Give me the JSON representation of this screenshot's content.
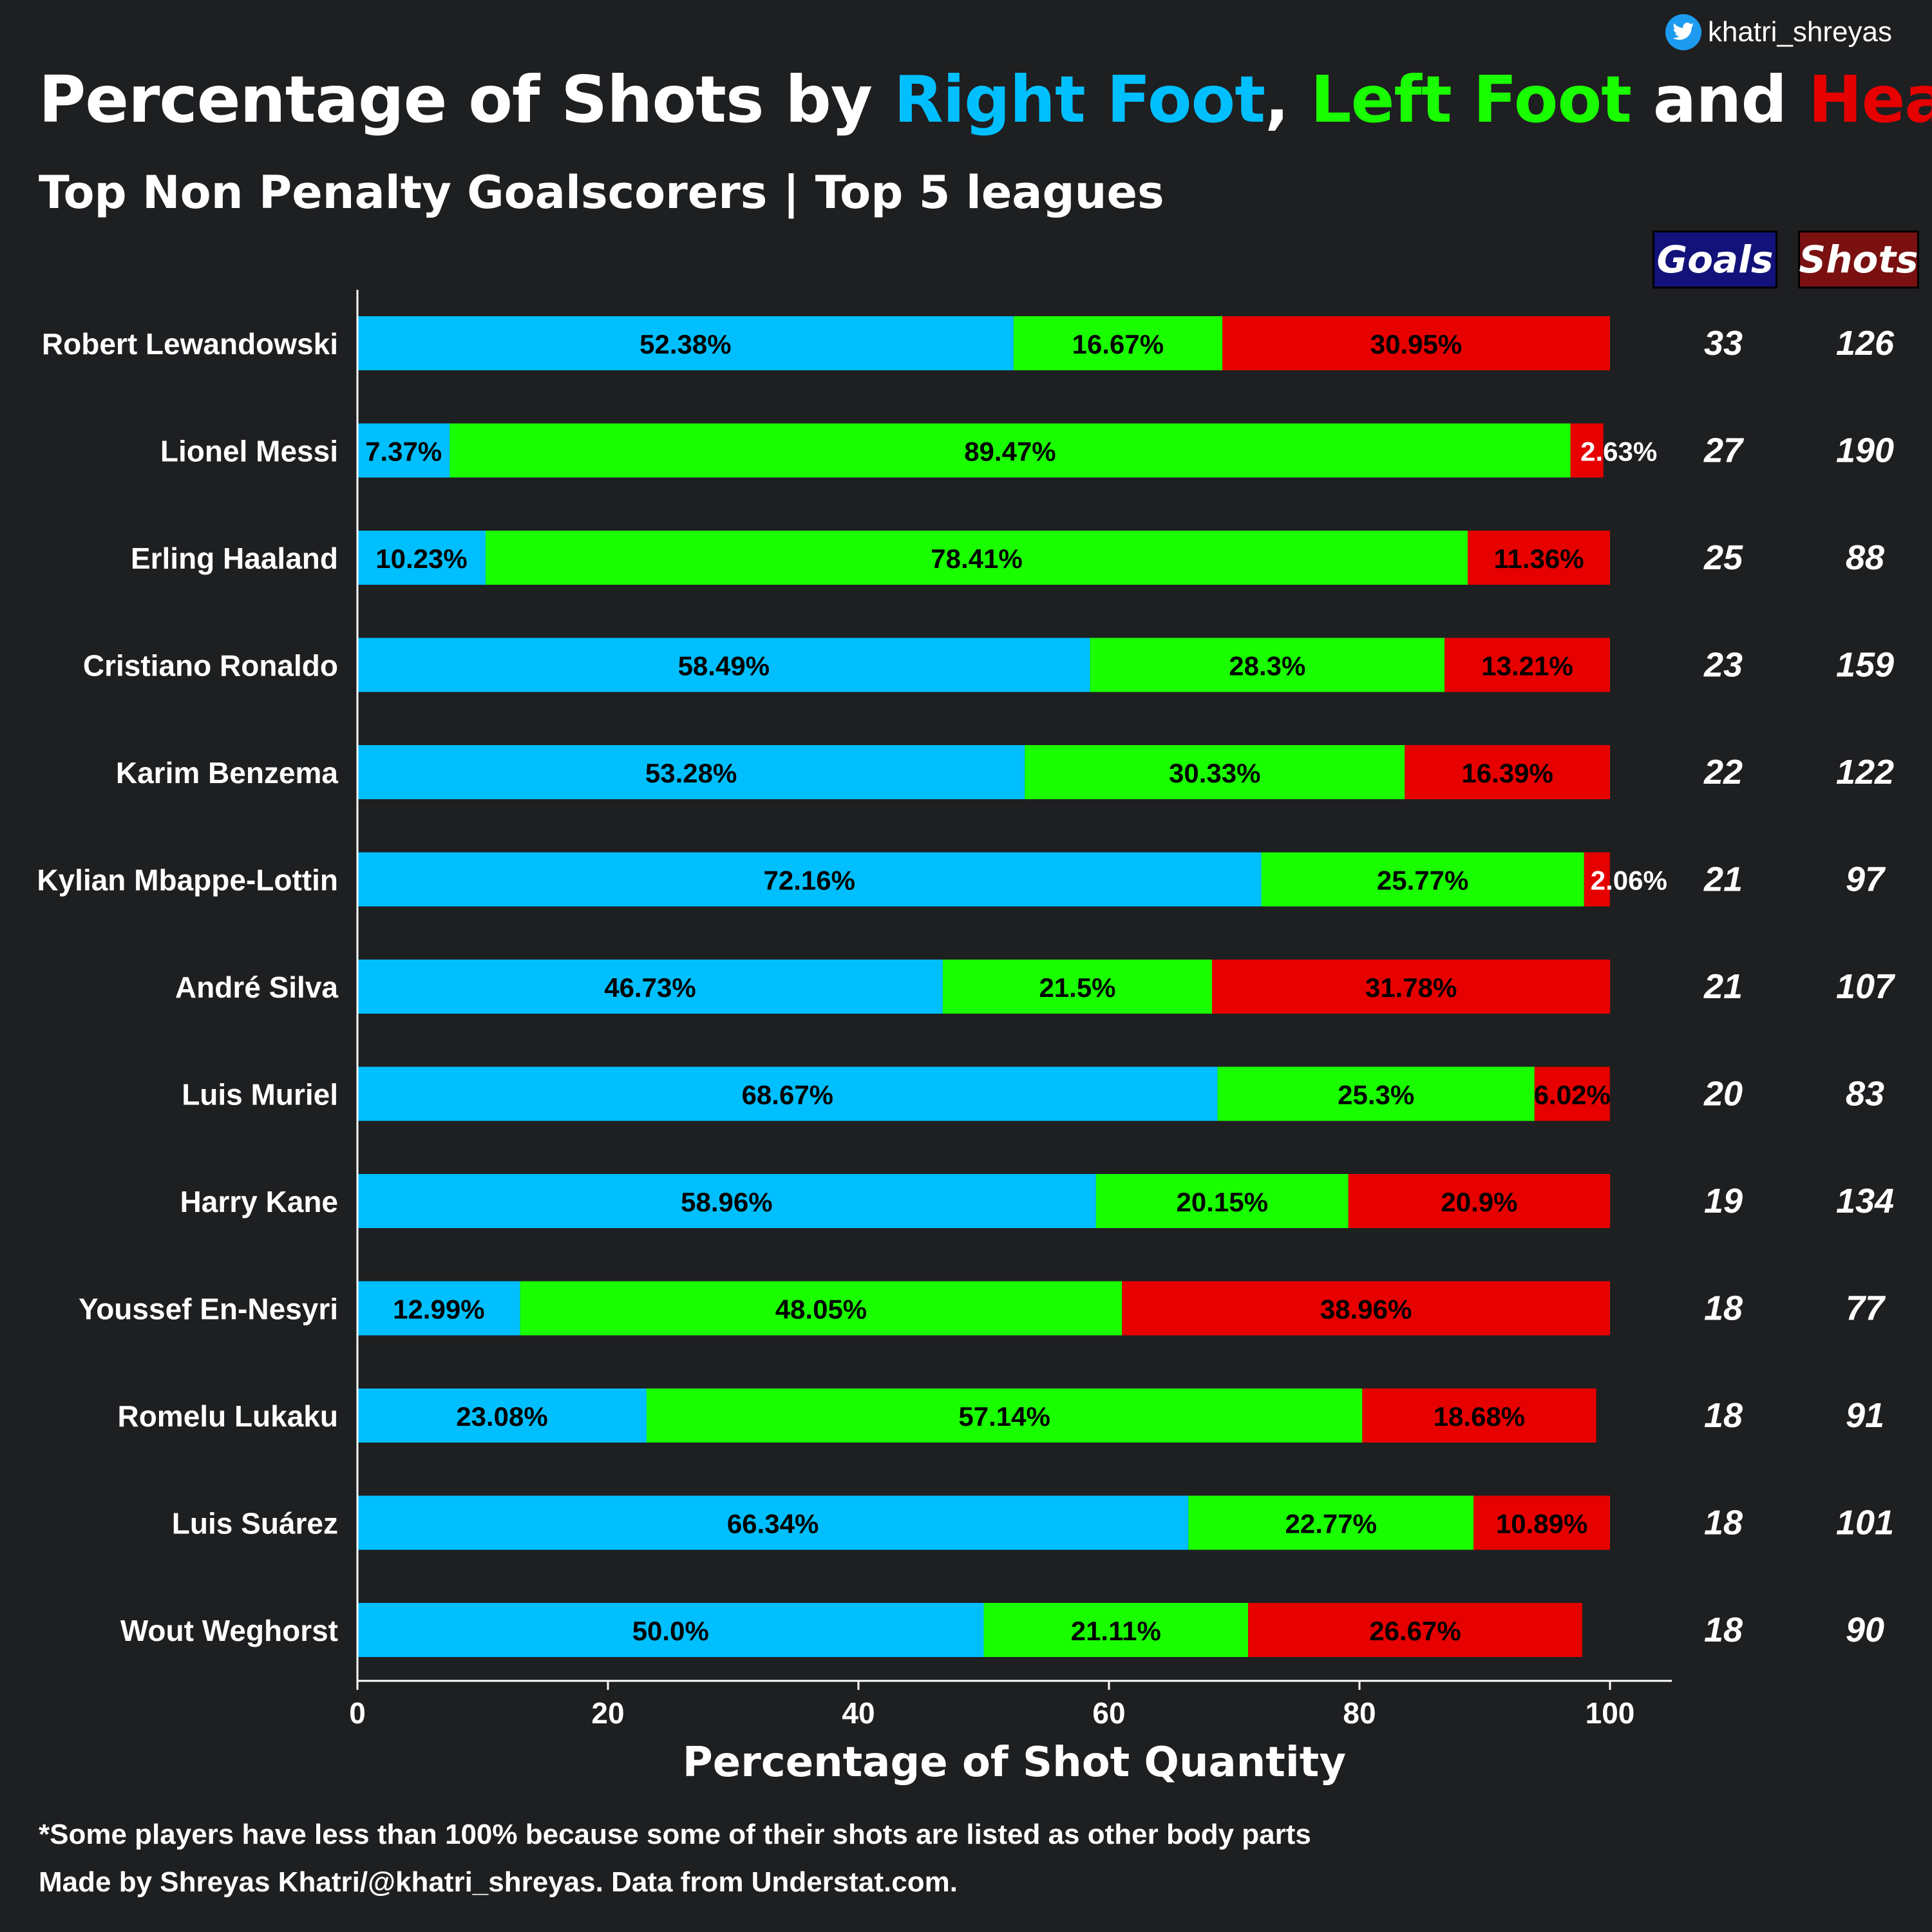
{
  "header": {
    "handle": "khatri_shreyas",
    "title_parts": [
      {
        "text": "Percentage of Shots by ",
        "color": "#ffffff"
      },
      {
        "text": "Right Foot",
        "color": "#00bfff"
      },
      {
        "text": ", ",
        "color": "#ffffff"
      },
      {
        "text": "Left Foot",
        "color": "#1aff00"
      },
      {
        "text": " and ",
        "color": "#ffffff"
      },
      {
        "text": "Head",
        "color": "#e60000"
      }
    ],
    "subtitle": "Top Non Penalty Goalscorers | Top 5 leagues",
    "goals_label": "Goals",
    "shots_label": "Shots"
  },
  "colors": {
    "background": "#1e1f21",
    "right_foot": "#00bfff",
    "left_foot": "#1aff00",
    "head": "#e60000",
    "goals_badge": "#12127a",
    "shots_badge": "#7a1010"
  },
  "chart_data": {
    "type": "bar",
    "orientation": "horizontal",
    "stacked": true,
    "xlabel": "Percentage of Shot Quantity",
    "xlim": [
      0,
      105
    ],
    "xticks": [
      0,
      20,
      40,
      60,
      80,
      100
    ],
    "categories": [
      "Robert Lewandowski",
      "Lionel Messi",
      "Erling Haaland",
      "Cristiano Ronaldo",
      "Karim Benzema",
      "Kylian Mbappe-Lottin",
      "André Silva",
      "Luis Muriel",
      "Harry Kane",
      "Youssef En-Nesyri",
      "Romelu Lukaku",
      "Luis Suárez",
      "Wout Weghorst"
    ],
    "series": [
      {
        "key": "right_foot",
        "values": [
          52.38,
          7.37,
          10.23,
          58.49,
          53.28,
          72.16,
          46.73,
          68.67,
          58.96,
          12.99,
          23.08,
          66.34,
          50.0
        ],
        "labels": [
          "52.38%",
          "7.37%",
          "10.23%",
          "58.49%",
          "53.28%",
          "72.16%",
          "46.73%",
          "68.67%",
          "58.96%",
          "12.99%",
          "23.08%",
          "66.34%",
          "50.0%"
        ]
      },
      {
        "key": "left_foot",
        "values": [
          16.67,
          89.47,
          78.41,
          28.3,
          30.33,
          25.77,
          21.5,
          25.3,
          20.15,
          48.05,
          57.14,
          22.77,
          21.11
        ],
        "labels": [
          "16.67%",
          "89.47%",
          "78.41%",
          "28.3%",
          "30.33%",
          "25.77%",
          "21.5%",
          "25.3%",
          "20.15%",
          "48.05%",
          "57.14%",
          "22.77%",
          "21.11%"
        ]
      },
      {
        "key": "head",
        "values": [
          30.95,
          2.63,
          11.36,
          13.21,
          16.39,
          2.06,
          31.78,
          6.02,
          20.9,
          38.96,
          18.68,
          10.89,
          26.67
        ],
        "labels": [
          "30.95%",
          "2.63%",
          "11.36%",
          "13.21%",
          "16.39%",
          "2.06%",
          "31.78%",
          "6.02%",
          "20.9%",
          "38.96%",
          "18.68%",
          "10.89%",
          "26.67%"
        ]
      }
    ],
    "goals": [
      33,
      27,
      25,
      23,
      22,
      21,
      21,
      20,
      19,
      18,
      18,
      18,
      18
    ],
    "shots": [
      126,
      190,
      88,
      159,
      122,
      97,
      107,
      83,
      134,
      77,
      91,
      101,
      90
    ]
  },
  "footer": {
    "note": "*Some players have less than 100% because some of their shots are listed as other body parts",
    "credit": "Made by Shreyas Khatri/@khatri_shreyas. Data from Understat.com."
  }
}
